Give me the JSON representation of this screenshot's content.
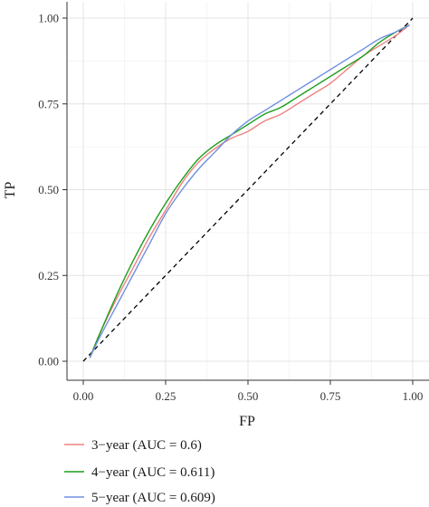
{
  "chart_data": {
    "type": "line",
    "xlabel": "FP",
    "ylabel": "TP",
    "xlim": [
      0,
      1
    ],
    "ylim": [
      0,
      1
    ],
    "xticks": [
      "0.00",
      "0.25",
      "0.50",
      "0.75",
      "1.00"
    ],
    "yticks": [
      "0.00",
      "0.25",
      "0.50",
      "0.75",
      "1.00"
    ],
    "grid": true,
    "legend_position": "bottom",
    "reference_line": {
      "x": [
        0,
        1
      ],
      "y": [
        0,
        1
      ],
      "style": "dashed",
      "color": "#000000"
    },
    "series": [
      {
        "name": "3−year (AUC = 0.6)",
        "color": "#f08080",
        "x": [
          0.02,
          0.05,
          0.1,
          0.15,
          0.2,
          0.25,
          0.3,
          0.35,
          0.4,
          0.45,
          0.5,
          0.55,
          0.6,
          0.65,
          0.7,
          0.75,
          0.8,
          0.85,
          0.9,
          0.95,
          0.99
        ],
        "y": [
          0.01,
          0.08,
          0.18,
          0.27,
          0.36,
          0.44,
          0.52,
          0.58,
          0.62,
          0.65,
          0.67,
          0.7,
          0.72,
          0.75,
          0.78,
          0.81,
          0.85,
          0.89,
          0.92,
          0.95,
          0.98
        ]
      },
      {
        "name": "4−year (AUC = 0.611)",
        "color": "#1a9e1a",
        "x": [
          0.02,
          0.05,
          0.1,
          0.15,
          0.2,
          0.25,
          0.3,
          0.35,
          0.4,
          0.45,
          0.5,
          0.55,
          0.6,
          0.65,
          0.7,
          0.75,
          0.8,
          0.85,
          0.9,
          0.95,
          0.99
        ],
        "y": [
          0.01,
          0.08,
          0.19,
          0.29,
          0.38,
          0.46,
          0.53,
          0.59,
          0.63,
          0.66,
          0.69,
          0.72,
          0.74,
          0.77,
          0.8,
          0.83,
          0.86,
          0.89,
          0.93,
          0.96,
          0.98
        ]
      },
      {
        "name": "5−year (AUC = 0.609)",
        "color": "#7090e0",
        "x": [
          0.02,
          0.05,
          0.1,
          0.15,
          0.2,
          0.25,
          0.3,
          0.35,
          0.4,
          0.45,
          0.5,
          0.55,
          0.6,
          0.65,
          0.7,
          0.75,
          0.8,
          0.85,
          0.9,
          0.95,
          0.99
        ],
        "y": [
          0.01,
          0.07,
          0.16,
          0.25,
          0.34,
          0.43,
          0.5,
          0.56,
          0.61,
          0.66,
          0.7,
          0.73,
          0.76,
          0.79,
          0.82,
          0.85,
          0.88,
          0.91,
          0.94,
          0.96,
          0.98
        ]
      }
    ]
  }
}
